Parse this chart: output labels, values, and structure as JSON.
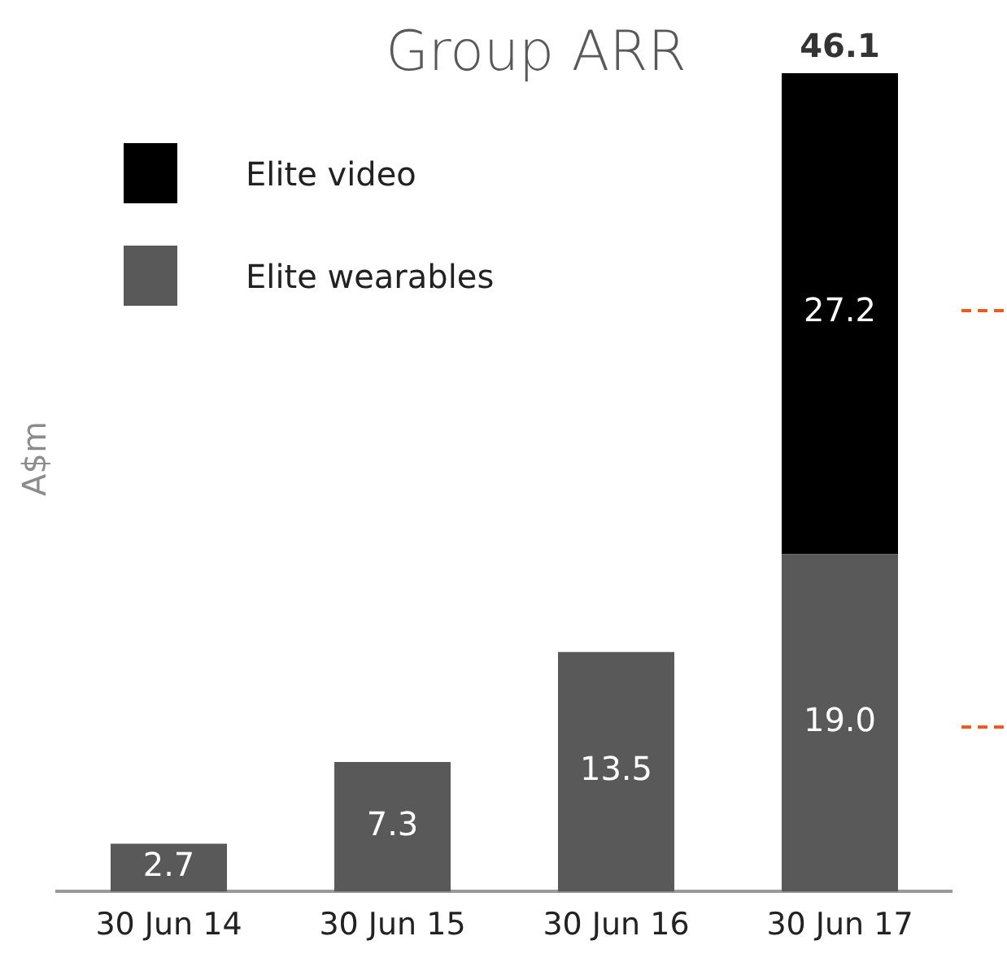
{
  "chart_data": {
    "type": "bar",
    "title": "Group ARR",
    "ylabel": "A$m",
    "categories": [
      "30 Jun 14",
      "30 Jun 15",
      "30 Jun 16",
      "30 Jun 17"
    ],
    "stacked": true,
    "series": [
      {
        "name": "Elite wearables",
        "color": "#595959",
        "values": [
          2.7,
          7.3,
          13.5,
          19.0
        ],
        "value_labels": [
          "2.7",
          "7.3",
          "13.5",
          "19.0"
        ]
      },
      {
        "name": "Elite video",
        "color": "#000000",
        "values": [
          null,
          null,
          null,
          27.2
        ],
        "value_labels": [
          null,
          null,
          null,
          "27.2"
        ]
      }
    ],
    "totals": [
      null,
      null,
      null,
      "46.1"
    ],
    "ylim": [
      0,
      46.1
    ],
    "tick_labels": "x",
    "grid": false,
    "legend": "top left"
  }
}
